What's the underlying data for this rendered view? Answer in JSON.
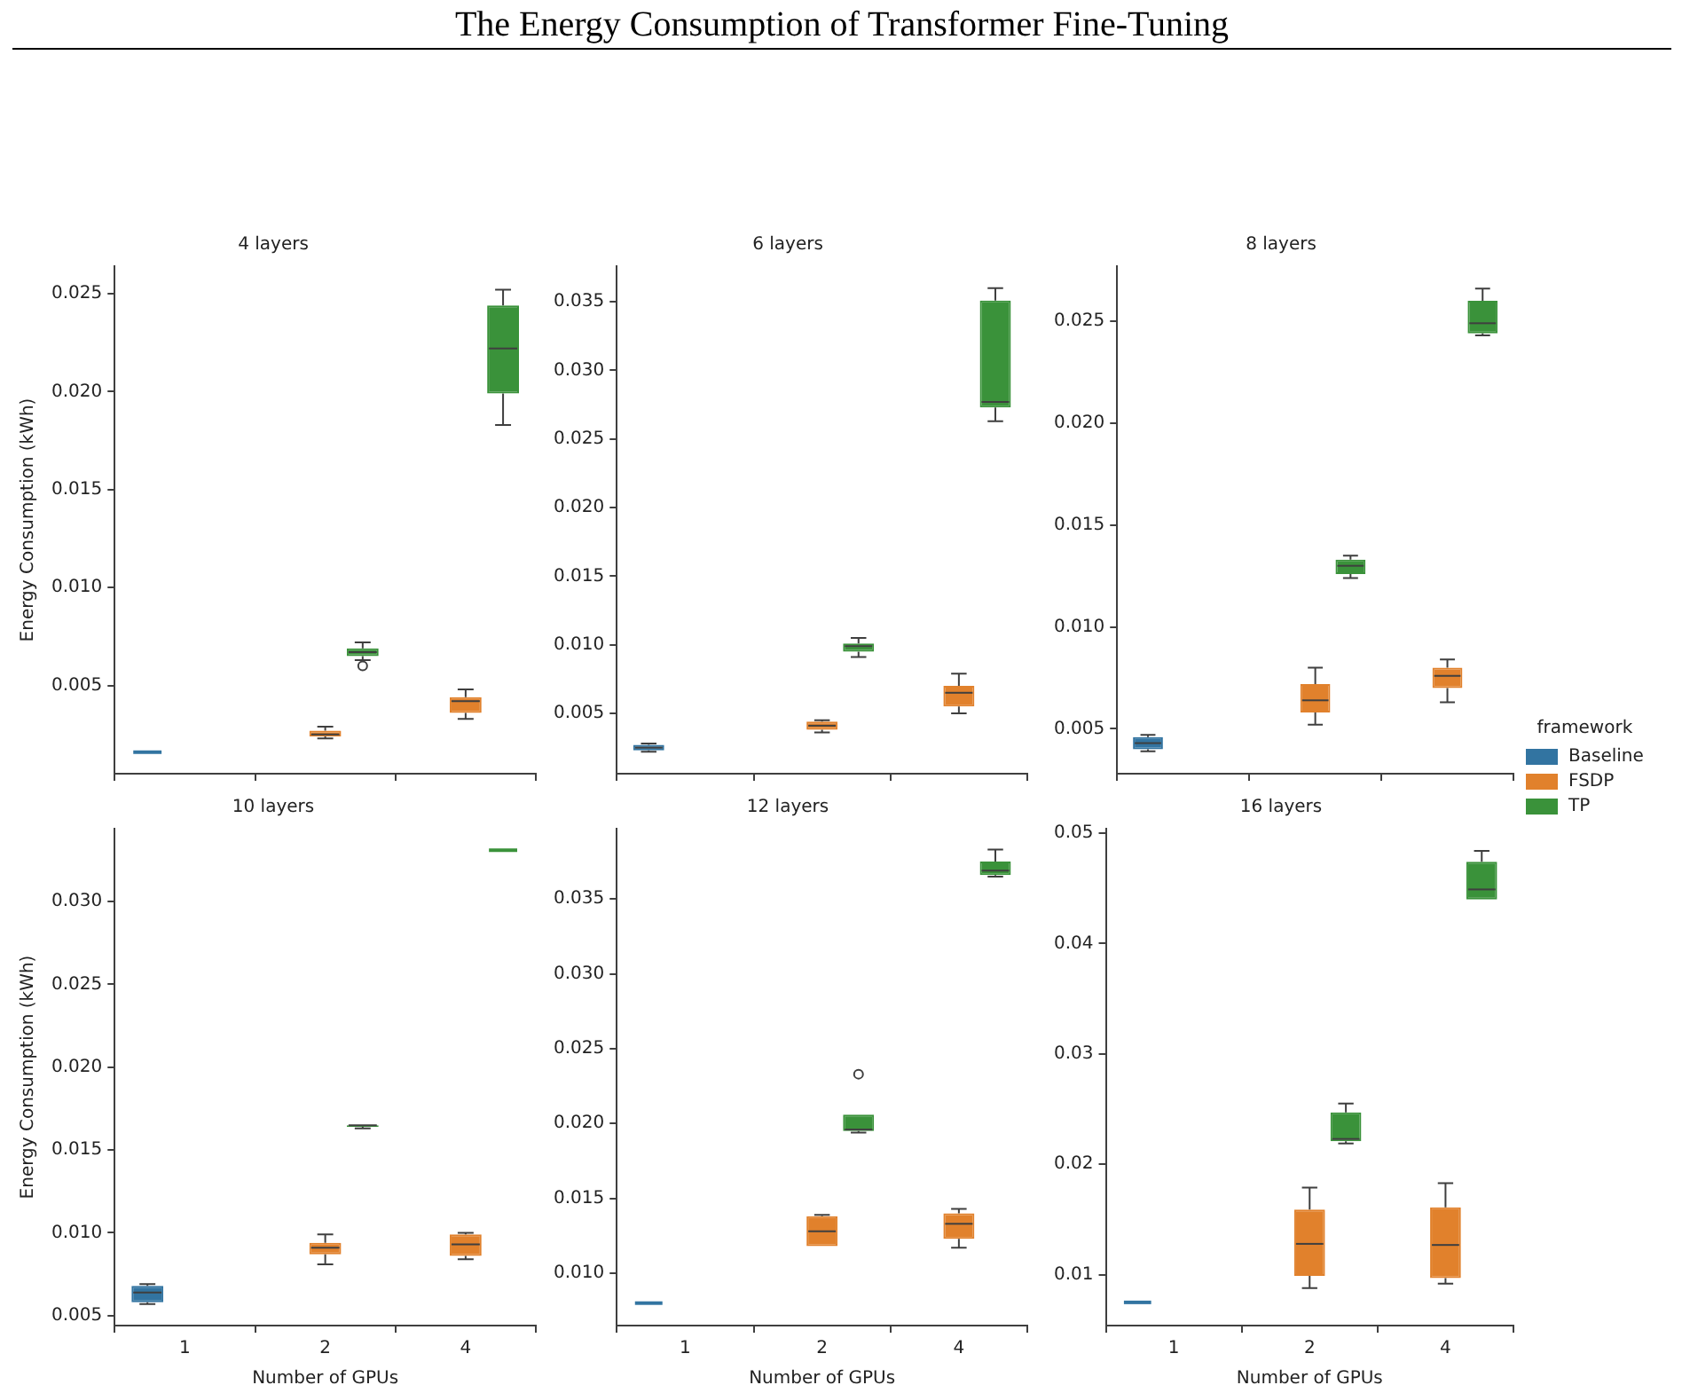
{
  "chart_data": [
    {
      "type": "box",
      "title": "4 layers",
      "annotations": [
        "The Energy Consumption of Transformer Fine-Tuning"
      ],
      "ylabel": "Energy Consumption (kWh)",
      "categories": [
        "1",
        "2",
        "4"
      ],
      "ylim": [
        0.0005,
        0.0264
      ],
      "yticks": [
        0.005,
        {
          "value": 0.01,
          "label": "0.010"
        },
        0.015,
        {
          "value": 0.02,
          "label": "0.020"
        },
        0.025
      ],
      "tick_labels": "y",
      "legend": "right",
      "legend_title": "framework",
      "series": [
        {
          "name": "Baseline",
          "color": "#3274a1",
          "boxes": [
            {
              "low": 0.0016,
              "q1": 0.0016,
              "median": 0.0016,
              "q3": 0.0016,
              "high": 0.0016
            },
            null,
            null
          ]
        },
        {
          "name": "FSDP",
          "color": "#e1812c",
          "boxes": [
            null,
            {
              "low": 0.0023,
              "q1": 0.0024,
              "median": 0.0025,
              "q3": 0.0027,
              "high": 0.0029
            },
            {
              "low": 0.0033,
              "q1": 0.0036,
              "median": 0.0042,
              "q3": 0.0044,
              "high": 0.0048
            }
          ]
        },
        {
          "name": "TP",
          "color": "#3a923a",
          "boxes": [
            null,
            {
              "low": 0.0063,
              "q1": 0.0065,
              "median": 0.0067,
              "q3": 0.0069,
              "high": 0.0072,
              "outliers": [
                0.006
              ]
            },
            {
              "low": 0.0183,
              "q1": 0.0199,
              "median": 0.0222,
              "q3": 0.0244,
              "high": 0.0252
            }
          ]
        }
      ]
    },
    {
      "type": "box",
      "title": "6 layers",
      "categories": [
        "1",
        "2",
        "4"
      ],
      "ylim": [
        0.0006,
        0.0376
      ],
      "yticks": [
        0.005,
        {
          "value": 0.01,
          "label": "0.010"
        },
        0.015,
        {
          "value": 0.02,
          "label": "0.020"
        },
        0.025,
        {
          "value": 0.03,
          "label": "0.030"
        },
        0.035
      ],
      "tick_labels": "y",
      "series": [
        {
          "color": "#3274a1",
          "boxes": [
            {
              "low": 0.0022,
              "q1": 0.0023,
              "median": 0.0025,
              "q3": 0.0027,
              "high": 0.0028
            },
            null,
            null
          ]
        },
        {
          "color": "#e1812c",
          "boxes": [
            null,
            {
              "low": 0.0036,
              "q1": 0.0038,
              "median": 0.0041,
              "q3": 0.0044,
              "high": 0.0045
            },
            {
              "low": 0.005,
              "q1": 0.0055,
              "median": 0.0065,
              "q3": 0.007,
              "high": 0.0079
            }
          ]
        },
        {
          "color": "#3a923a",
          "boxes": [
            null,
            {
              "low": 0.0091,
              "q1": 0.0095,
              "median": 0.0099,
              "q3": 0.0101,
              "high": 0.0105
            },
            {
              "low": 0.0263,
              "q1": 0.0273,
              "median": 0.0277,
              "q3": 0.0351,
              "high": 0.036
            }
          ]
        }
      ]
    },
    {
      "type": "box",
      "title": "8 layers",
      "categories": [
        "1",
        "2",
        "4"
      ],
      "ylim": [
        0.0028,
        0.0277
      ],
      "yticks": [
        0.005,
        {
          "value": 0.01,
          "label": "0.010"
        },
        0.015,
        {
          "value": 0.02,
          "label": "0.020"
        },
        0.025
      ],
      "tick_labels": "y",
      "series": [
        {
          "color": "#3274a1",
          "boxes": [
            {
              "low": 0.0039,
              "q1": 0.004,
              "median": 0.0043,
              "q3": 0.0046,
              "high": 0.0047
            },
            null,
            null
          ]
        },
        {
          "color": "#e1812c",
          "boxes": [
            null,
            {
              "low": 0.0052,
              "q1": 0.0058,
              "median": 0.0064,
              "q3": 0.0072,
              "high": 0.008
            },
            {
              "low": 0.0063,
              "q1": 0.007,
              "median": 0.0076,
              "q3": 0.008,
              "high": 0.0084
            }
          ]
        },
        {
          "color": "#3a923a",
          "boxes": [
            null,
            {
              "low": 0.0124,
              "q1": 0.0126,
              "median": 0.013,
              "q3": 0.0133,
              "high": 0.0135
            },
            {
              "low": 0.0243,
              "q1": 0.0244,
              "median": 0.0249,
              "q3": 0.026,
              "high": 0.0266
            }
          ]
        }
      ]
    },
    {
      "type": "box",
      "title": "10 layers",
      "xlabel": "Number of GPUs",
      "ylabel": "Energy Consumption (kWh)",
      "categories": [
        "1",
        "2",
        "4"
      ],
      "ylim": [
        0.0044,
        0.0344
      ],
      "yticks": [
        0.005,
        {
          "value": 0.01,
          "label": "0.010"
        },
        0.015,
        {
          "value": 0.02,
          "label": "0.020"
        },
        0.025,
        {
          "value": 0.03,
          "label": "0.030"
        }
      ],
      "series": [
        {
          "color": "#3274a1",
          "boxes": [
            {
              "low": 0.0057,
              "q1": 0.0058,
              "median": 0.0064,
              "q3": 0.0068,
              "high": 0.0069
            },
            null,
            null
          ]
        },
        {
          "color": "#e1812c",
          "boxes": [
            null,
            {
              "low": 0.0081,
              "q1": 0.0087,
              "median": 0.0091,
              "q3": 0.0094,
              "high": 0.0099
            },
            {
              "low": 0.0084,
              "q1": 0.0086,
              "median": 0.0093,
              "q3": 0.0099,
              "high": 0.01
            }
          ]
        },
        {
          "color": "#3a923a",
          "boxes": [
            null,
            {
              "low": 0.0163,
              "q1": 0.0164,
              "median": 0.0165,
              "q3": 0.0165,
              "high": 0.0165
            },
            {
              "low": 0.0331,
              "q1": 0.0331,
              "median": 0.0331,
              "q3": 0.0331,
              "high": 0.0331
            }
          ]
        }
      ]
    },
    {
      "type": "box",
      "title": "12 layers",
      "xlabel": "Number of GPUs",
      "categories": [
        "1",
        "2",
        "4"
      ],
      "ylim": [
        0.0065,
        0.0397
      ],
      "yticks": [
        {
          "value": 0.01,
          "label": "0.010"
        },
        0.015,
        {
          "value": 0.02,
          "label": "0.020"
        },
        0.025,
        {
          "value": 0.03,
          "label": "0.030"
        },
        0.035
      ],
      "series": [
        {
          "color": "#3274a1",
          "boxes": [
            {
              "low": 0.008,
              "q1": 0.008,
              "median": 0.008,
              "q3": 0.008,
              "high": 0.008
            },
            null,
            null
          ]
        },
        {
          "color": "#e1812c",
          "boxes": [
            null,
            {
              "low": 0.0118,
              "q1": 0.0118,
              "median": 0.0128,
              "q3": 0.0138,
              "high": 0.0139
            },
            {
              "low": 0.0117,
              "q1": 0.0123,
              "median": 0.0133,
              "q3": 0.014,
              "high": 0.0143
            }
          ]
        },
        {
          "color": "#3a923a",
          "boxes": [
            null,
            {
              "low": 0.0194,
              "q1": 0.0195,
              "median": 0.0196,
              "q3": 0.0206,
              "high": 0.0206,
              "outliers": [
                0.0233
              ]
            },
            {
              "low": 0.0365,
              "q1": 0.0366,
              "median": 0.0369,
              "q3": 0.0375,
              "high": 0.0383
            }
          ]
        }
      ]
    },
    {
      "type": "box",
      "title": "16 layers",
      "xlabel": "Number of GPUs",
      "categories": [
        "1",
        "2",
        "4"
      ],
      "ylim": [
        0.0054,
        0.0504
      ],
      "yticks": [
        0.01,
        0.02,
        0.03,
        0.04,
        0.05
      ],
      "series": [
        {
          "color": "#3274a1",
          "boxes": [
            {
              "low": 0.0075,
              "q1": 0.0075,
              "median": 0.0075,
              "q3": 0.0075,
              "high": 0.0075
            },
            null,
            null
          ]
        },
        {
          "color": "#e1812c",
          "boxes": [
            null,
            {
              "low": 0.0088,
              "q1": 0.0099,
              "median": 0.0128,
              "q3": 0.0159,
              "high": 0.0179
            },
            {
              "low": 0.0092,
              "q1": 0.0097,
              "median": 0.0127,
              "q3": 0.0161,
              "high": 0.0183
            }
          ]
        },
        {
          "color": "#3a923a",
          "boxes": [
            null,
            {
              "low": 0.0219,
              "q1": 0.0221,
              "median": 0.0223,
              "q3": 0.0247,
              "high": 0.0255
            },
            {
              "low": 0.044,
              "q1": 0.044,
              "median": 0.0449,
              "q3": 0.0474,
              "high": 0.0484
            }
          ]
        }
      ]
    }
  ]
}
